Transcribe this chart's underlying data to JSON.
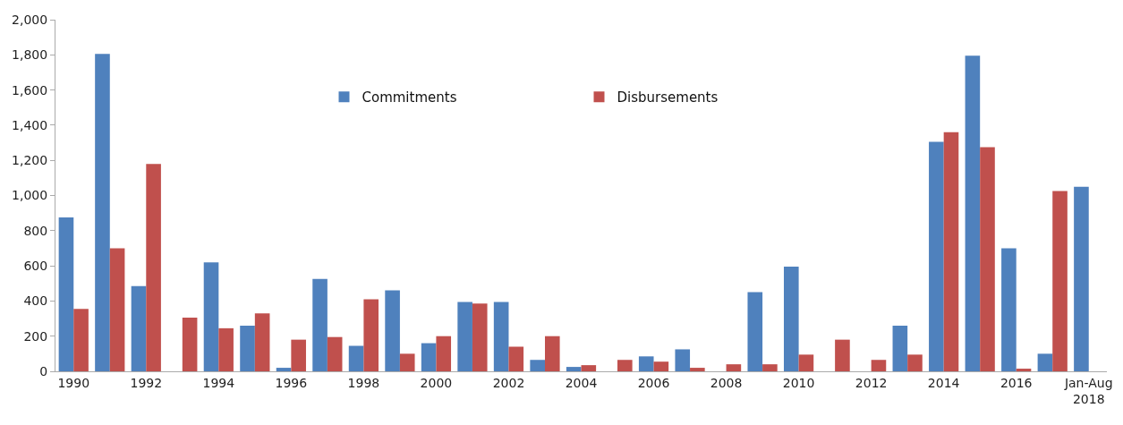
{
  "chart_data": {
    "type": "bar",
    "categories": [
      "1990",
      null,
      "1992",
      null,
      "1994",
      null,
      "1996",
      null,
      "1998",
      null,
      "2000",
      null,
      "2002",
      null,
      "2004",
      null,
      "2006",
      null,
      "2008",
      null,
      "2010",
      null,
      "2012",
      null,
      "2014",
      null,
      "2016",
      null,
      "Jan-Aug 2018"
    ],
    "series": [
      {
        "name": "Commitments",
        "color": "#4f81bd",
        "values": [
          875,
          1805,
          485,
          0,
          620,
          260,
          20,
          525,
          145,
          460,
          160,
          395,
          395,
          65,
          25,
          0,
          85,
          125,
          0,
          450,
          595,
          0,
          0,
          260,
          1305,
          1795,
          700,
          100,
          1050
        ]
      },
      {
        "name": "Disbursements",
        "color": "#c0504d",
        "values": [
          355,
          700,
          1180,
          305,
          245,
          330,
          180,
          195,
          410,
          100,
          200,
          385,
          140,
          200,
          35,
          65,
          55,
          20,
          40,
          40,
          95,
          180,
          65,
          95,
          1360,
          1275,
          15,
          1025,
          null
        ]
      }
    ],
    "ylim": [
      0,
      2000
    ],
    "yticks": [
      {
        "value": 0,
        "label": "0"
      },
      {
        "value": 200,
        "label": "200"
      },
      {
        "value": 400,
        "label": "400"
      },
      {
        "value": 600,
        "label": "600"
      },
      {
        "value": 800,
        "label": "800"
      },
      {
        "value": 1000,
        "label": "1,000"
      },
      {
        "value": 1200,
        "label": "1,200"
      },
      {
        "value": 1400,
        "label": "1,400"
      },
      {
        "value": 1600,
        "label": "1,600"
      },
      {
        "value": 1800,
        "label": "1,800"
      },
      {
        "value": 2000,
        "label": "2,000"
      }
    ],
    "legend": "top"
  }
}
